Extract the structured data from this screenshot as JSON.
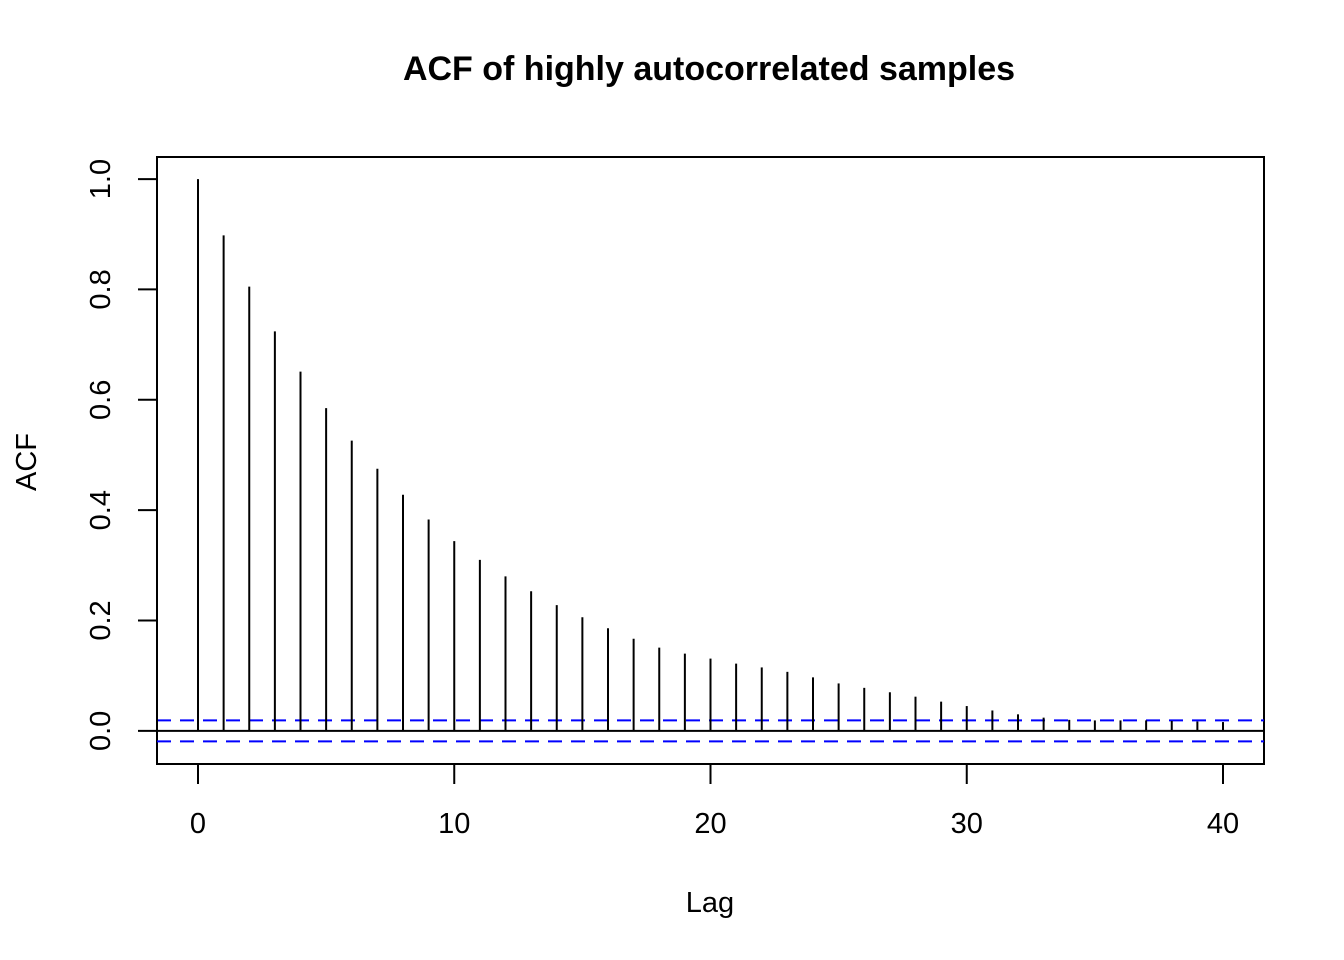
{
  "chart_data": {
    "type": "bar",
    "subtype": "acf-stem",
    "title": "ACF of highly autocorrelated samples",
    "xlabel": "Lag",
    "ylabel": "ACF",
    "x": [
      0,
      1,
      2,
      3,
      4,
      5,
      6,
      7,
      8,
      9,
      10,
      11,
      12,
      13,
      14,
      15,
      16,
      17,
      18,
      19,
      20,
      21,
      22,
      23,
      24,
      25,
      26,
      27,
      28,
      29,
      30,
      31,
      32,
      33,
      34,
      35,
      36,
      37,
      38,
      39,
      40
    ],
    "values": [
      1.0,
      0.898,
      0.805,
      0.724,
      0.651,
      0.585,
      0.526,
      0.475,
      0.428,
      0.383,
      0.344,
      0.31,
      0.28,
      0.253,
      0.228,
      0.206,
      0.186,
      0.167,
      0.151,
      0.14,
      0.131,
      0.122,
      0.115,
      0.107,
      0.097,
      0.086,
      0.078,
      0.07,
      0.062,
      0.053,
      0.045,
      0.037,
      0.03,
      0.024,
      0.02,
      0.019,
      0.019,
      0.019,
      0.018,
      0.017,
      0.016
    ],
    "confidence_bound": 0.019,
    "xlim": [
      -1.6,
      41.6
    ],
    "ylim": [
      -0.06,
      1.04
    ],
    "xticks": [
      "0",
      "10",
      "20",
      "30",
      "40"
    ],
    "yticks": [
      "0.0",
      "0.2",
      "0.4",
      "0.6",
      "0.8",
      "1.0"
    ],
    "grid": false,
    "colors": {
      "bars": "#000000",
      "confidence": "#0000ff",
      "zero_line": "#000000",
      "frame": "#000000"
    }
  }
}
